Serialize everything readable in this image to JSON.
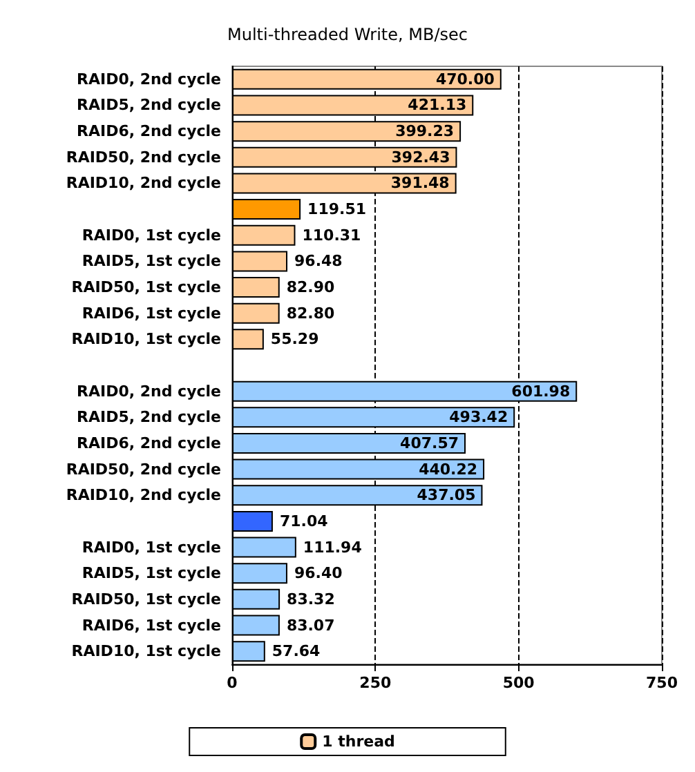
{
  "chart_data": {
    "type": "bar",
    "orientation": "horizontal",
    "title": "Multi-threaded Write, MB/sec",
    "categories": [
      "RAID0, 2nd cycle",
      "RAID5, 2nd cycle",
      "RAID6, 2nd cycle",
      "RAID50, 2nd cycle",
      "RAID10, 2nd cycle",
      null,
      "RAID0, 1st cycle",
      "RAID5, 1st cycle",
      "RAID50, 1st cycle",
      "RAID6, 1st cycle",
      "RAID10, 1st cycle",
      null,
      "RAID0, 2nd cycle",
      "RAID5, 2nd cycle",
      "RAID6, 2nd cycle",
      "RAID50, 2nd cycle",
      "RAID10, 2nd cycle",
      null,
      "RAID0, 1st cycle",
      "RAID5, 1st cycle",
      "RAID50, 1st cycle",
      "RAID6, 1st cycle",
      "RAID10, 1st cycle"
    ],
    "series": [
      {
        "name": "1 thread",
        "color": "#ffcc99",
        "colors": [
          "#ffcc99",
          "#ffcc99",
          "#ffcc99",
          "#ffcc99",
          "#ffcc99",
          "#ff9900",
          "#ffcc99",
          "#ffcc99",
          "#ffcc99",
          "#ffcc99",
          "#ffcc99",
          null,
          null,
          null,
          null,
          null,
          null,
          null,
          null,
          null,
          null,
          null,
          null
        ],
        "values": [
          470.0,
          421.13,
          399.23,
          392.43,
          391.48,
          119.51,
          110.31,
          96.48,
          82.9,
          82.8,
          55.29,
          null,
          null,
          null,
          null,
          null,
          null,
          null,
          null,
          null,
          null,
          null,
          null
        ],
        "value_labels": [
          "470.00",
          "421.13",
          "399.23",
          "392.43",
          "391.48",
          "119.51",
          "110.31",
          "96.48",
          "82.90",
          "82.80",
          "55.29",
          null,
          null,
          null,
          null,
          null,
          null,
          null,
          null,
          null,
          null,
          null,
          null
        ]
      },
      {
        "color": "#99ccff",
        "colors": [
          null,
          null,
          null,
          null,
          null,
          null,
          null,
          null,
          null,
          null,
          null,
          null,
          "#99ccff",
          "#99ccff",
          "#99ccff",
          "#99ccff",
          "#99ccff",
          "#3366ff",
          "#99ccff",
          "#99ccff",
          "#99ccff",
          "#99ccff",
          "#99ccff"
        ],
        "values": [
          null,
          null,
          null,
          null,
          null,
          null,
          null,
          null,
          null,
          null,
          null,
          null,
          601.98,
          493.42,
          407.57,
          440.22,
          437.05,
          71.04,
          111.94,
          96.4,
          83.32,
          83.07,
          57.64
        ],
        "value_labels": [
          null,
          null,
          null,
          null,
          null,
          null,
          null,
          null,
          null,
          null,
          null,
          null,
          "601.98",
          "493.42",
          "407.57",
          "440.22",
          "437.05",
          "71.04",
          "111.94",
          "96.40",
          "83.32",
          "83.07",
          "57.64"
        ]
      }
    ],
    "xlim": [
      0,
      750
    ],
    "xticks": [
      0,
      250,
      500,
      750
    ],
    "grid": "x",
    "legend": "bottom"
  }
}
